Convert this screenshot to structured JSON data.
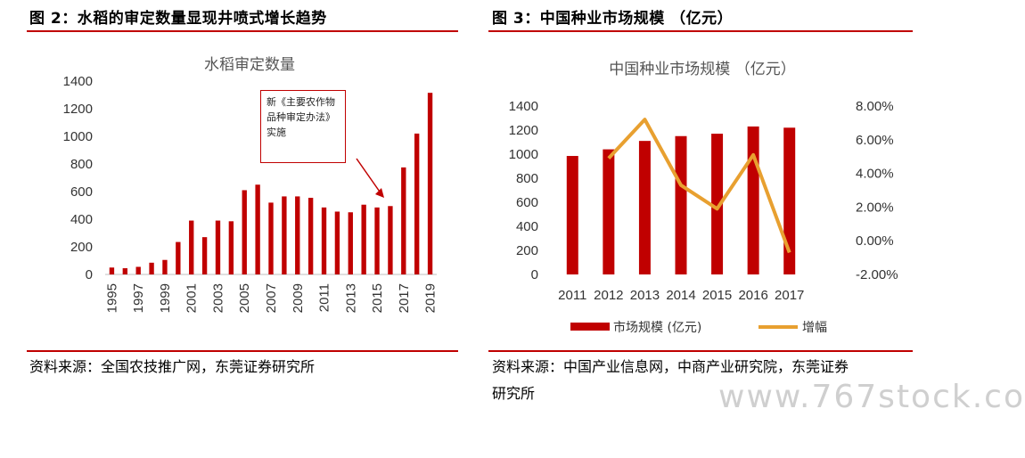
{
  "left": {
    "fig_title": "图 2：水稻的审定数量显现井喷式增长趋势",
    "source": "资料来源：全国农技推广网，东莞证券研究所",
    "chart_data": {
      "type": "bar",
      "title": "水稻审定数量",
      "years": [
        1995,
        1996,
        1997,
        1998,
        1999,
        2000,
        2001,
        2002,
        2003,
        2004,
        2005,
        2006,
        2007,
        2008,
        2009,
        2010,
        2011,
        2012,
        2013,
        2014,
        2015,
        2016,
        2017,
        2018,
        2019
      ],
      "values": [
        50,
        45,
        55,
        85,
        105,
        235,
        390,
        270,
        390,
        385,
        610,
        650,
        520,
        565,
        565,
        555,
        485,
        455,
        450,
        505,
        485,
        495,
        775,
        1020,
        1315
      ],
      "tick_labels": [
        "1995",
        "1997",
        "1999",
        "2001",
        "2003",
        "2005",
        "2007",
        "2009",
        "2011",
        "2013",
        "2015",
        "2017",
        "2019"
      ],
      "y_ticks": [
        "0",
        "200",
        "400",
        "600",
        "800",
        "1000",
        "1200",
        "1400"
      ],
      "ylim": [
        0,
        1400
      ],
      "bar_color": "#c00000",
      "annotation": "新《主要农作物品种审定办法》实施"
    }
  },
  "right": {
    "fig_title": "图 3：中国种业市场规模 （亿元）",
    "source_line1": "资料来源：中国产业信息网，中商产业研究院，东莞证券",
    "source_line2": "研究所",
    "chart_data": {
      "type": "bar+line",
      "title": "中国种业市场规模 （亿元）",
      "categories": [
        "2011",
        "2012",
        "2013",
        "2014",
        "2015",
        "2016",
        "2017"
      ],
      "series": [
        {
          "name": "市场规模 (亿元)",
          "type": "bar",
          "axis": "left",
          "color": "#c00000",
          "values": [
            985,
            1040,
            1110,
            1150,
            1170,
            1230,
            1220
          ]
        },
        {
          "name": "增幅",
          "type": "line",
          "axis": "right",
          "color": "#e8a030",
          "values": [
            null,
            4.9,
            7.2,
            3.3,
            1.9,
            5.1,
            -0.7
          ]
        }
      ],
      "y_left_ticks": [
        "0",
        "200",
        "400",
        "600",
        "800",
        "1000",
        "1200",
        "1400"
      ],
      "y_right_ticks": [
        "-2.00%",
        "0.00%",
        "2.00%",
        "4.00%",
        "6.00%",
        "8.00%"
      ],
      "ylim_left": [
        0,
        1400
      ],
      "ylim_right": [
        -2,
        8
      ]
    }
  },
  "watermark": "www.767stock.co"
}
